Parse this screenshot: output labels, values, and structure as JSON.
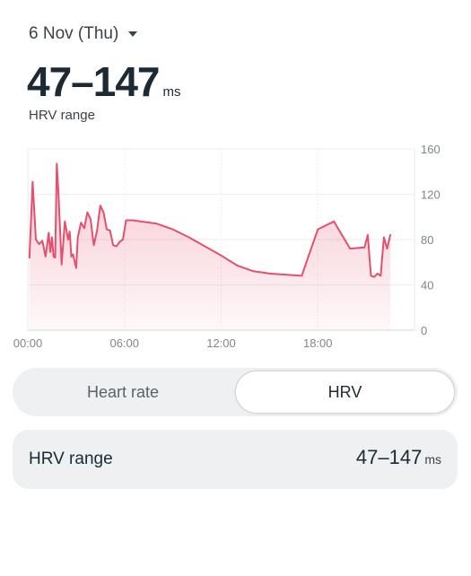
{
  "header": {
    "date_label": "6 Nov (Thu)",
    "summary_value": "47–147",
    "summary_unit": "ms",
    "summary_label": "HRV range"
  },
  "chart_data": {
    "type": "area",
    "title": "",
    "xlabel": "",
    "ylabel": "",
    "x_ticks": [
      "00:00",
      "06:00",
      "12:00",
      "18:00"
    ],
    "y_ticks": [
      "0",
      "40",
      "80",
      "120",
      "160"
    ],
    "xlim": [
      0,
      24
    ],
    "ylim": [
      0,
      160
    ],
    "grid": true,
    "color": "#e5506d",
    "series": [
      {
        "x": [
          0.1,
          0.3,
          0.5,
          0.7,
          0.9,
          1.1,
          1.3,
          1.4,
          1.5,
          1.6,
          1.7,
          1.8,
          1.9,
          2.1,
          2.3,
          2.5,
          2.6,
          2.7,
          2.8,
          2.9,
          3.0,
          3.1,
          3.3,
          3.5,
          3.7,
          3.9,
          4.1,
          4.3,
          4.5,
          4.7,
          4.9,
          5.1,
          5.3,
          5.5,
          5.7,
          5.9,
          6.1,
          6.3,
          6.5,
          7.0,
          8.0,
          9.0,
          10.0,
          11.0,
          12.0,
          13.0,
          14.0,
          15.0,
          16.0,
          17.0,
          18.0,
          19.0,
          20.0,
          20.9,
          21.1,
          21.3,
          21.5,
          21.7,
          21.9,
          22.1,
          22.3,
          22.5
        ],
        "y": [
          64,
          131,
          80,
          76,
          79,
          65,
          86,
          69,
          82,
          65,
          64,
          147,
          122,
          58,
          96,
          80,
          87,
          65,
          67,
          61,
          55,
          82,
          95,
          90,
          104,
          98,
          75,
          88,
          110,
          104,
          89,
          88,
          75,
          74,
          78,
          80,
          97,
          97,
          97,
          96,
          94,
          89,
          82,
          74,
          66,
          57,
          52,
          50,
          49,
          48,
          89,
          96,
          72,
          73,
          84,
          48,
          47,
          50,
          48,
          82,
          72,
          84
        ]
      }
    ]
  },
  "tabs": {
    "heart_rate": "Heart rate",
    "hrv": "HRV",
    "active": "hrv"
  },
  "range_card": {
    "label": "HRV range",
    "value": "47–147",
    "unit": "ms"
  }
}
